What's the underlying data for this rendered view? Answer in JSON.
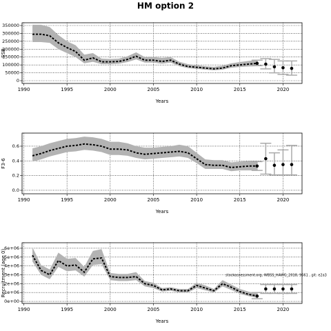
{
  "title": "HM option 2",
  "chart_data": [
    {
      "type": "line",
      "y_label": "SSB",
      "x_label": "Years",
      "x": [
        1991,
        1992,
        1993,
        1994,
        1995,
        1996,
        1997,
        1998,
        1999,
        2000,
        2001,
        2002,
        2003,
        2004,
        2005,
        2006,
        2007,
        2008,
        2009,
        2010,
        2011,
        2012,
        2013,
        2014,
        2015,
        2016,
        2017
      ],
      "values": [
        295000,
        295000,
        285000,
        240000,
        210000,
        185000,
        130000,
        145000,
        120000,
        120000,
        122000,
        135000,
        155000,
        130000,
        130000,
        122000,
        130000,
        105000,
        90000,
        85000,
        80000,
        75000,
        80000,
        95000,
        100000,
        105000,
        110000
      ],
      "lower": [
        245000,
        245000,
        240000,
        200000,
        175000,
        150000,
        110000,
        120000,
        105000,
        105000,
        108000,
        118000,
        135000,
        115000,
        115000,
        108000,
        115000,
        92000,
        80000,
        75000,
        70000,
        66000,
        70000,
        82000,
        87000,
        90000,
        92000
      ],
      "upper": [
        355000,
        355000,
        340000,
        290000,
        250000,
        225000,
        165000,
        175000,
        140000,
        138000,
        140000,
        155000,
        180000,
        150000,
        150000,
        145000,
        150000,
        120000,
        105000,
        98000,
        92000,
        88000,
        95000,
        110000,
        118000,
        125000,
        130000
      ],
      "forecast": {
        "x": [
          2017,
          2018,
          2019,
          2020,
          2021
        ],
        "values": [
          110000,
          105000,
          88000,
          82000,
          78000
        ],
        "lower": [
          95000,
          75000,
          50000,
          40000,
          35000
        ],
        "upper": [
          130000,
          140000,
          135000,
          125000,
          125000
        ]
      },
      "xlim": [
        1989.8,
        2022.2
      ],
      "xticks": [
        1990,
        1995,
        2000,
        2005,
        2010,
        2015,
        2020
      ],
      "ylim": [
        -17500,
        367500
      ],
      "yticks": [
        0,
        50000,
        100000,
        150000,
        200000,
        250000,
        300000,
        350000
      ],
      "grid": true,
      "band_color": "#b3b3b3",
      "line_color": "#000000",
      "forecast_color": "#aaaaaa"
    },
    {
      "type": "line",
      "y_label": "F3-6",
      "x_label": "Years",
      "x": [
        1991,
        1992,
        1993,
        1994,
        1995,
        1996,
        1997,
        1998,
        1999,
        2000,
        2001,
        2002,
        2003,
        2004,
        2005,
        2006,
        2007,
        2008,
        2009,
        2010,
        2011,
        2012,
        2013,
        2014,
        2015,
        2016,
        2017
      ],
      "values": [
        0.47,
        0.5,
        0.54,
        0.57,
        0.6,
        0.61,
        0.63,
        0.62,
        0.6,
        0.56,
        0.56,
        0.55,
        0.51,
        0.49,
        0.5,
        0.51,
        0.52,
        0.53,
        0.51,
        0.43,
        0.35,
        0.34,
        0.34,
        0.31,
        0.32,
        0.33,
        0.33
      ],
      "lower": [
        0.39,
        0.42,
        0.46,
        0.49,
        0.52,
        0.53,
        0.55,
        0.54,
        0.52,
        0.48,
        0.48,
        0.47,
        0.44,
        0.42,
        0.43,
        0.44,
        0.45,
        0.46,
        0.44,
        0.37,
        0.29,
        0.29,
        0.29,
        0.26,
        0.27,
        0.27,
        0.27
      ],
      "upper": [
        0.57,
        0.6,
        0.64,
        0.67,
        0.7,
        0.71,
        0.73,
        0.72,
        0.7,
        0.66,
        0.66,
        0.64,
        0.6,
        0.58,
        0.58,
        0.59,
        0.6,
        0.62,
        0.6,
        0.51,
        0.42,
        0.41,
        0.41,
        0.38,
        0.39,
        0.4,
        0.4
      ],
      "forecast": {
        "x": [
          2017,
          2018,
          2019,
          2020,
          2021
        ],
        "values": [
          0.33,
          0.43,
          0.34,
          0.35,
          0.35
        ],
        "lower": [
          0.27,
          0.22,
          0.21,
          0.21,
          0.21
        ],
        "upper": [
          0.39,
          0.64,
          0.51,
          0.55,
          0.61
        ]
      },
      "xlim": [
        1989.8,
        2022.2
      ],
      "xticks": [
        1990,
        1995,
        2000,
        2005,
        2010,
        2015,
        2020
      ],
      "ylim": [
        -0.047,
        0.778
      ],
      "yticks": [
        {
          "value": 0,
          "label": "0.0"
        },
        0.2,
        0.4,
        0.6
      ],
      "grid": true,
      "band_color": "#b3b3b3",
      "line_color": "#000000",
      "forecast_color": "#aaaaaa"
    },
    {
      "type": "line",
      "y_label": "Recruitment (age 0)",
      "x_label": "Years",
      "annotation": "stockassessment.org, WBSS_HAWG_2018, 9561 , git: e2a3",
      "x": [
        1991,
        1992,
        1993,
        1994,
        1995,
        1996,
        1997,
        1998,
        1999,
        2000,
        2001,
        2002,
        2003,
        2004,
        2005,
        2006,
        2007,
        2008,
        2009,
        2010,
        2011,
        2012,
        2013,
        2014,
        2015,
        2016,
        2017
      ],
      "values": [
        5200000,
        3500000,
        3000000,
        4600000,
        4000000,
        4100000,
        3300000,
        4800000,
        4900000,
        2800000,
        2700000,
        2700000,
        2800000,
        2000000,
        1800000,
        1300000,
        1400000,
        1200000,
        1200000,
        1800000,
        1500000,
        1200000,
        2000000,
        1600000,
        1100000,
        800000,
        600000
      ],
      "lower": [
        4500000,
        3000000,
        2500000,
        3900000,
        3400000,
        3500000,
        2800000,
        4100000,
        4200000,
        2400000,
        2300000,
        2300000,
        2400000,
        1700000,
        1500000,
        1100000,
        1200000,
        1000000,
        1000000,
        1500000,
        1250000,
        1000000,
        1700000,
        1300000,
        850000,
        600000,
        400000
      ],
      "upper": [
        6100000,
        4100000,
        3600000,
        5500000,
        4800000,
        4900000,
        3900000,
        5700000,
        5900000,
        3200000,
        3100000,
        3100000,
        3300000,
        2300000,
        2100000,
        1500000,
        1600000,
        1400000,
        1400000,
        2100000,
        1800000,
        1400000,
        2400000,
        1900000,
        1400000,
        1100000,
        900000
      ],
      "forecast": {
        "x": [
          2017,
          2018,
          2019,
          2020,
          2021
        ],
        "values": [
          600000,
          1400000,
          1400000,
          1400000,
          1400000
        ],
        "lower": [
          300000,
          900000,
          900000,
          900000,
          900000
        ],
        "upper": [
          1000000,
          1900000,
          1900000,
          1900000,
          1900000
        ]
      },
      "xlim": [
        1989.8,
        2022.2
      ],
      "xticks": [
        1990,
        1995,
        2000,
        2005,
        2010,
        2015,
        2020
      ],
      "ylim": [
        -230000,
        6620000
      ],
      "yticks": [
        {
          "value": 0,
          "label": "0e+00"
        },
        {
          "value": 1000000,
          "label": "1e+06"
        },
        {
          "value": 2000000,
          "label": "2e+06"
        },
        {
          "value": 3000000,
          "label": "3e+06"
        },
        {
          "value": 4000000,
          "label": "4e+06"
        },
        {
          "value": 5000000,
          "label": "5e+06"
        },
        {
          "value": 6000000,
          "label": "6e+06"
        }
      ],
      "grid": true,
      "band_color": "#b3b3b3",
      "line_color": "#000000",
      "forecast_color": "#aaaaaa"
    }
  ]
}
